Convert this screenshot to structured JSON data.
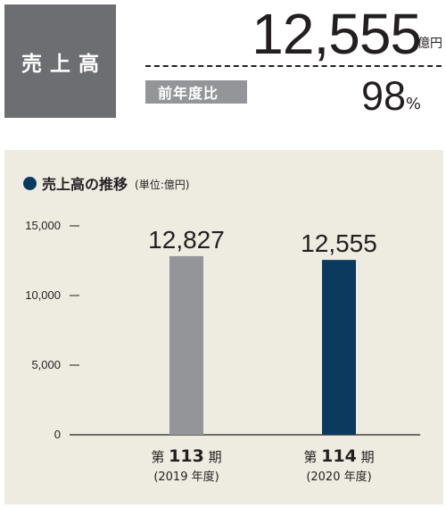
{
  "header": {
    "label": "売上高",
    "value": "12,555",
    "unit": "億円",
    "yoy_label": "前年度比",
    "yoy_value": "98",
    "yoy_unit": "%"
  },
  "chart_data": {
    "type": "bar",
    "title": "売上高の推移",
    "unit_note": "(単位:億円)",
    "categories": [
      {
        "line1_prefix": "第 ",
        "line1_num": "113",
        "line1_suffix": " 期",
        "line2": "(2019 年度)"
      },
      {
        "line1_prefix": "第 ",
        "line1_num": "114",
        "line1_suffix": " 期",
        "line2": "(2020 年度)"
      }
    ],
    "values": [
      12827,
      12555
    ],
    "value_labels": [
      "12,827",
      "12,555"
    ],
    "colors": [
      "#939598",
      "#0b3a5e"
    ],
    "ylim": [
      0,
      15000
    ],
    "yticks": [
      0,
      5000,
      10000,
      15000
    ],
    "ytick_labels": [
      "0",
      "5,000",
      "10,000",
      "15,000"
    ],
    "xlabel": "",
    "ylabel": "",
    "grid": false
  }
}
